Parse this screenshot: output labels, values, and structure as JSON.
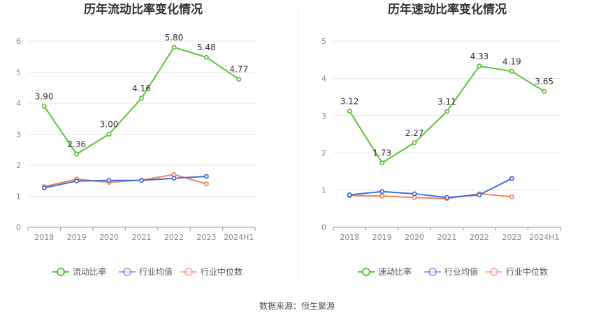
{
  "colors": {
    "current_ratio": "#5bc236",
    "industry_avg": "#3f6fd8",
    "industry_median": "#ef8357",
    "grid": "#e6e6e6",
    "divider": "#eeeeee"
  },
  "chart_data": [
    {
      "type": "line",
      "title": "历年流动比率变化情况",
      "categories": [
        "2018",
        "2019",
        "2020",
        "2021",
        "2022",
        "2023",
        "2024H1"
      ],
      "ylim": [
        0,
        6
      ],
      "yticks": [
        0,
        1,
        2,
        3,
        4,
        5,
        6
      ],
      "grid": true,
      "legend_position": "bottom",
      "series": [
        {
          "name": "流动比率",
          "color_key": "current_ratio",
          "values": [
            3.9,
            2.36,
            3.0,
            4.16,
            5.8,
            5.48,
            4.77
          ],
          "labels": [
            "3.90",
            "2.36",
            "3.00",
            "4.16",
            "5.80",
            "5.48",
            "4.77"
          ]
        },
        {
          "name": "行业均值",
          "color_key": "industry_avg",
          "values": [
            1.27,
            1.49,
            1.51,
            1.51,
            1.58,
            1.64,
            null
          ]
        },
        {
          "name": "行业中位数",
          "color_key": "industry_median",
          "values": [
            1.31,
            1.55,
            1.45,
            1.52,
            1.7,
            1.4,
            null
          ]
        }
      ]
    },
    {
      "type": "line",
      "title": "历年速动比率变化情况",
      "categories": [
        "2018",
        "2019",
        "2020",
        "2021",
        "2022",
        "2023",
        "2024H1"
      ],
      "ylim": [
        0,
        5
      ],
      "yticks": [
        0,
        1,
        2,
        3,
        4,
        5
      ],
      "grid": true,
      "legend_position": "bottom",
      "series": [
        {
          "name": "速动比率",
          "color_key": "current_ratio",
          "values": [
            3.12,
            1.73,
            2.27,
            3.11,
            4.33,
            4.19,
            3.65
          ],
          "labels": [
            "3.12",
            "1.73",
            "2.27",
            "3.11",
            "4.33",
            "4.19",
            "3.65"
          ]
        },
        {
          "name": "行业均值",
          "color_key": "industry_avg",
          "values": [
            0.87,
            0.96,
            0.9,
            0.8,
            0.87,
            1.31,
            null
          ]
        },
        {
          "name": "行业中位数",
          "color_key": "industry_median",
          "values": [
            0.85,
            0.84,
            0.8,
            0.77,
            0.9,
            0.82,
            null
          ]
        }
      ]
    }
  ],
  "source_text": "数据来源：恒生聚源"
}
